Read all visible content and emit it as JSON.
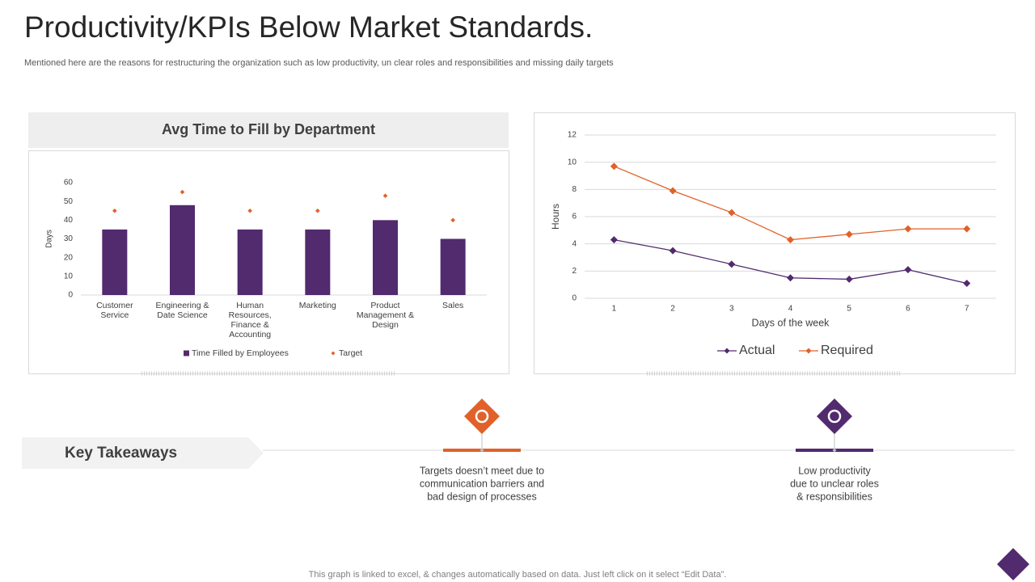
{
  "title": "Productivity/KPIs Below Market Standards.",
  "subtitle": "Mentioned here are the reasons for restructuring the organization such as low productivity, un clear roles and responsibilities and missing daily targets",
  "chart_data": [
    {
      "type": "bar",
      "title": "Avg Time to Fill by Department",
      "ylabel": "Days",
      "categories": [
        "Customer Service",
        "Engineering & Date Science",
        "Human Resources, Finance & Accounting",
        "Marketing",
        "Product Management & Design",
        "Sales"
      ],
      "series": [
        {
          "name": "Time Filled by Employees",
          "type": "bar",
          "color": "#522a6e",
          "values": [
            35,
            48,
            35,
            35,
            40,
            30
          ]
        },
        {
          "name": "Target",
          "type": "marker",
          "color": "#e0622a",
          "values": [
            45,
            55,
            45,
            45,
            53,
            40
          ]
        }
      ],
      "ylim": [
        0,
        60
      ],
      "yticks": [
        0,
        10,
        20,
        30,
        40,
        50,
        60
      ],
      "grid": false,
      "legend": "bottom"
    },
    {
      "type": "line",
      "xlabel": "Days of the week",
      "ylabel": "Hours",
      "x": [
        1,
        2,
        3,
        4,
        5,
        6,
        7
      ],
      "xlim": [
        0.5,
        7.5
      ],
      "xticks": [
        1,
        2,
        3,
        4,
        5,
        6,
        7
      ],
      "series": [
        {
          "name": "Actual",
          "color": "#522a6e",
          "values": [
            4.3,
            3.5,
            2.5,
            1.5,
            1.4,
            2.1,
            1.1
          ]
        },
        {
          "name": "Required",
          "color": "#e0622a",
          "values": [
            9.7,
            7.9,
            6.3,
            4.3,
            4.7,
            5.1,
            5.1
          ]
        }
      ],
      "ylim": [
        0,
        12
      ],
      "yticks": [
        0,
        2,
        4,
        6,
        8,
        10,
        12
      ],
      "grid": true,
      "legend": "bottom"
    }
  ],
  "key_takeaways": {
    "label": "Key Takeaways",
    "items": [
      {
        "text": [
          "Targets doesn’t meet due to",
          "communication barriers and",
          "bad design of processes"
        ],
        "color": "#e0622a"
      },
      {
        "text": [
          "Low productivity",
          "due to unclear roles",
          "& responsibilities"
        ],
        "color": "#522a6e"
      }
    ]
  },
  "footer": "This graph is linked to excel, & changes automatically based on data. Just left click on it select “Edit Data”."
}
